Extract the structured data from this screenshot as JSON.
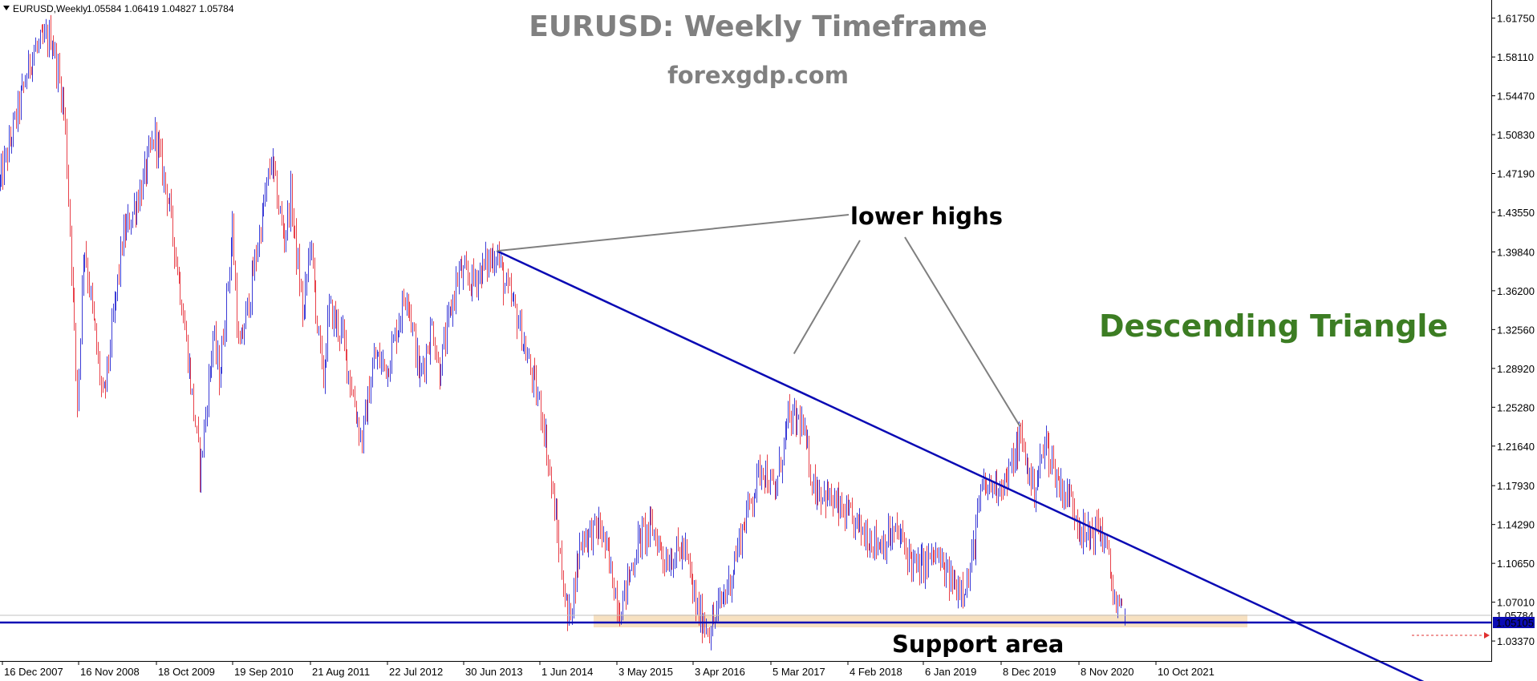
{
  "header": {
    "symbol": "EURUSD,Weekly",
    "ohlc": "1.05584 1.06419 1.04827 1.05784"
  },
  "title": "EURUSD: Weekly Timeframe",
  "subtitle": "forexgdp.com",
  "annotations": {
    "lower_highs": "lower highs",
    "pattern": "Descending Triangle",
    "support": "Support area"
  },
  "colors": {
    "bull": "#3b3bd6",
    "bear": "#e8414a",
    "trendline": "#0a0ab4",
    "pattern_text": "#3c7d23",
    "title_text": "#808080",
    "support_zone": "#f6dcb6",
    "pointer": "#7f7f7f"
  },
  "chart_data": {
    "type": "candlestick",
    "instrument": "EURUSD",
    "timeframe": "Weekly",
    "ylim": [
      1.015,
      1.6345
    ],
    "y_ticks": [
      "1.61750",
      "1.58110",
      "1.54470",
      "1.50830",
      "1.47190",
      "1.43550",
      "1.39840",
      "1.36200",
      "1.32560",
      "1.28920",
      "1.25280",
      "1.21640",
      "1.17930",
      "1.14290",
      "1.10650",
      "1.07010",
      "1.03370"
    ],
    "x_ticks": [
      "16 Dec 2007",
      "16 Nov 2008",
      "18 Oct 2009",
      "19 Sep 2010",
      "21 Aug 2011",
      "22 Jul 2012",
      "30 Jun 2013",
      "1 Jun 2014",
      "3 May 2015",
      "3 Apr 2016",
      "5 Mar 2017",
      "4 Feb 2018",
      "6 Jan 2019",
      "8 Dec 2019",
      "8 Nov 2020",
      "10 Oct 2021"
    ],
    "last_close": 1.05784,
    "last_close_label": "1.05784",
    "support_price": 1.05105,
    "support_label": "1.05105",
    "support_zone": [
      1.0465,
      1.0585
    ],
    "trendline": {
      "from": {
        "date": "2014-04",
        "price": 1.3993
      },
      "to": {
        "date": "2022-06",
        "price": 1.1235
      }
    },
    "lower_high_points": [
      {
        "date": "2014-04",
        "price": 1.3993
      },
      {
        "date": "2018-02",
        "price": 1.303
      },
      {
        "date": "2021-01",
        "price": 1.2349
      }
    ],
    "path": [
      [
        "2007-11",
        1.463
      ],
      [
        "2008-04",
        1.585
      ],
      [
        "2008-07",
        1.601
      ],
      [
        "2008-09",
        1.53
      ],
      [
        "2008-10",
        1.4
      ],
      [
        "2008-11",
        1.255
      ],
      [
        "2008-12",
        1.41
      ],
      [
        "2009-03",
        1.255
      ],
      [
        "2009-06",
        1.41
      ],
      [
        "2009-09",
        1.46
      ],
      [
        "2009-11",
        1.509
      ],
      [
        "2010-01",
        1.45
      ],
      [
        "2010-03",
        1.36
      ],
      [
        "2010-05",
        1.25
      ],
      [
        "2010-06",
        1.192
      ],
      [
        "2010-08",
        1.32
      ],
      [
        "2010-09",
        1.28
      ],
      [
        "2010-11",
        1.42
      ],
      [
        "2010-12",
        1.3
      ],
      [
        "2011-02",
        1.37
      ],
      [
        "2011-05",
        1.485
      ],
      [
        "2011-07",
        1.41
      ],
      [
        "2011-08",
        1.45
      ],
      [
        "2011-10",
        1.335
      ],
      [
        "2011-11",
        1.41
      ],
      [
        "2012-01",
        1.275
      ],
      [
        "2012-02",
        1.345
      ],
      [
        "2012-04",
        1.32
      ],
      [
        "2012-07",
        1.22
      ],
      [
        "2012-09",
        1.3
      ],
      [
        "2012-11",
        1.29
      ],
      [
        "2013-02",
        1.365
      ],
      [
        "2013-04",
        1.28
      ],
      [
        "2013-06",
        1.33
      ],
      [
        "2013-07",
        1.285
      ],
      [
        "2013-10",
        1.38
      ],
      [
        "2013-12",
        1.37
      ],
      [
        "2014-04",
        1.399
      ],
      [
        "2014-05",
        1.37
      ],
      [
        "2014-07",
        1.34
      ],
      [
        "2014-09",
        1.29
      ],
      [
        "2014-11",
        1.245
      ],
      [
        "2015-01",
        1.15
      ],
      [
        "2015-03",
        1.05
      ],
      [
        "2015-05",
        1.13
      ],
      [
        "2015-08",
        1.14
      ],
      [
        "2015-09",
        1.115
      ],
      [
        "2015-11",
        1.062
      ],
      [
        "2016-02",
        1.13
      ],
      [
        "2016-04",
        1.14
      ],
      [
        "2016-06",
        1.11
      ],
      [
        "2016-09",
        1.12
      ],
      [
        "2016-11",
        1.06
      ],
      [
        "2017-01",
        1.045
      ],
      [
        "2017-04",
        1.09
      ],
      [
        "2017-06",
        1.14
      ],
      [
        "2017-09",
        1.2
      ],
      [
        "2017-11",
        1.17
      ],
      [
        "2018-01",
        1.24
      ],
      [
        "2018-03",
        1.24
      ],
      [
        "2018-05",
        1.18
      ],
      [
        "2018-07",
        1.17
      ],
      [
        "2018-10",
        1.15
      ],
      [
        "2018-12",
        1.14
      ],
      [
        "2019-03",
        1.125
      ],
      [
        "2019-06",
        1.135
      ],
      [
        "2019-09",
        1.1
      ],
      [
        "2019-12",
        1.115
      ],
      [
        "2020-01",
        1.1
      ],
      [
        "2020-03",
        1.085
      ],
      [
        "2020-05",
        1.09
      ],
      [
        "2020-07",
        1.175
      ],
      [
        "2020-09",
        1.18
      ],
      [
        "2020-11",
        1.185
      ],
      [
        "2021-01",
        1.225
      ],
      [
        "2021-03",
        1.175
      ],
      [
        "2021-05",
        1.22
      ],
      [
        "2021-07",
        1.18
      ],
      [
        "2021-09",
        1.165
      ],
      [
        "2021-11",
        1.13
      ],
      [
        "2022-01",
        1.14
      ],
      [
        "2022-02",
        1.13
      ],
      [
        "2022-03",
        1.095
      ],
      [
        "2022-04",
        1.06
      ],
      [
        "2022-05",
        1.058
      ]
    ]
  }
}
